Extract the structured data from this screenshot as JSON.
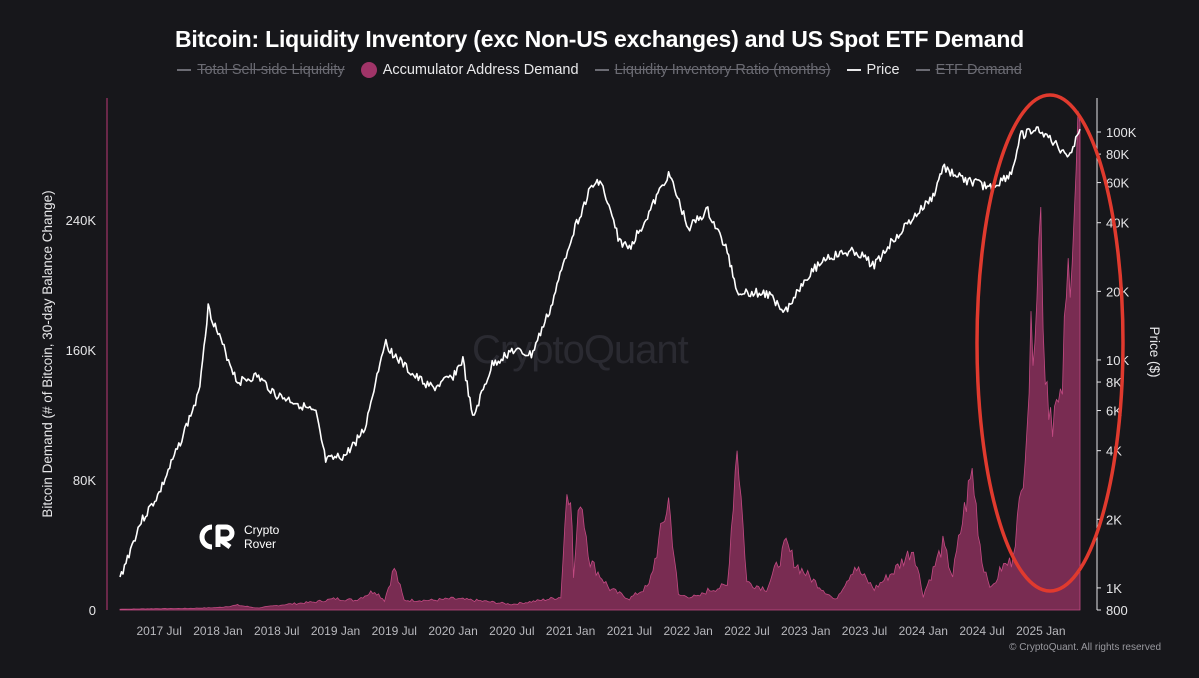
{
  "chart_data": {
    "type": "area",
    "title": "Bitcoin: Liquidity Inventory (exc Non-US exchanges) and US Spot ETF Demand",
    "legend": {
      "placement": "top-center",
      "items": [
        {
          "label": "Total Sell-side Liquidity",
          "active": false,
          "marker": "line"
        },
        {
          "label": "Accumulator Address Demand",
          "active": true,
          "marker": "dot"
        },
        {
          "label": "Liquidity Inventory Ratio (months)",
          "active": false,
          "marker": "line"
        },
        {
          "label": "Price",
          "active": true,
          "marker": "line"
        },
        {
          "label": "ETF Demand",
          "active": false,
          "marker": "line"
        }
      ]
    },
    "ylabel_left": "Bitcoin Demand (# of Bitcoin, 30-day Balance Change)",
    "ylabel_right": "Price ($)",
    "y_left_ticks": [
      "0",
      "80K",
      "160K",
      "240K"
    ],
    "y_left_values": [
      0,
      80000,
      160000,
      240000
    ],
    "y_right_ticks": [
      "800",
      "1K",
      "2K",
      "4K",
      "6K",
      "8K",
      "10K",
      "20K",
      "40K",
      "60K",
      "80K",
      "100K"
    ],
    "y_right_values": [
      800,
      1000,
      2000,
      4000,
      6000,
      8000,
      10000,
      20000,
      40000,
      60000,
      80000,
      100000
    ],
    "y_right_scale": "log",
    "x_ticks": [
      "2017 Jul",
      "2018 Jan",
      "2018 Jul",
      "2019 Jan",
      "2019 Jul",
      "2020 Jan",
      "2020 Jul",
      "2021 Jan",
      "2021 Jul",
      "2022 Jan",
      "2022 Jul",
      "2023 Jan",
      "2023 Jul",
      "2024 Jan",
      "2024 Jul",
      "2025 Jan"
    ],
    "x_range": [
      "2017-03",
      "2025-05"
    ],
    "grid": false,
    "series": [
      {
        "name": "Accumulator Address Demand",
        "axis": "left",
        "color": "#a03468",
        "points": [
          [
            "2017-03",
            500
          ],
          [
            "2017-07",
            800
          ],
          [
            "2017-10",
            1000
          ],
          [
            "2018-01",
            1500
          ],
          [
            "2018-03",
            3000
          ],
          [
            "2018-05",
            1200
          ],
          [
            "2018-08",
            3500
          ],
          [
            "2018-11",
            5000
          ],
          [
            "2019-01",
            7000
          ],
          [
            "2019-03",
            6000
          ],
          [
            "2019-05",
            12000
          ],
          [
            "2019-06",
            6000
          ],
          [
            "2019-07",
            26000
          ],
          [
            "2019-08",
            6000
          ],
          [
            "2019-11",
            6000
          ],
          [
            "2020-01",
            7000
          ],
          [
            "2020-04",
            5500
          ],
          [
            "2020-07",
            3500
          ],
          [
            "2020-10",
            6000
          ],
          [
            "2020-12",
            8000
          ],
          [
            "2020-12-20",
            75000
          ],
          [
            "2021-01",
            76000
          ],
          [
            "2021-01-10",
            20000
          ],
          [
            "2021-02",
            72000
          ],
          [
            "2021-03",
            30000
          ],
          [
            "2021-05",
            13000
          ],
          [
            "2021-07",
            7000
          ],
          [
            "2021-09",
            15000
          ],
          [
            "2021-11",
            68000
          ],
          [
            "2021-12",
            9000
          ],
          [
            "2022-02",
            8000
          ],
          [
            "2022-03",
            12000
          ],
          [
            "2022-05",
            15000
          ],
          [
            "2022-06",
            104000
          ],
          [
            "2022-07",
            17000
          ],
          [
            "2022-09",
            13000
          ],
          [
            "2022-11",
            40000
          ],
          [
            "2022-12",
            28000
          ],
          [
            "2023-02",
            17000
          ],
          [
            "2023-04",
            6000
          ],
          [
            "2023-06",
            27000
          ],
          [
            "2023-08",
            13000
          ],
          [
            "2023-10",
            24000
          ],
          [
            "2023-12",
            38000
          ],
          [
            "2024-01",
            9000
          ],
          [
            "2024-03",
            40000
          ],
          [
            "2024-04",
            21000
          ],
          [
            "2024-05",
            55000
          ],
          [
            "2024-06",
            85000
          ],
          [
            "2024-07",
            30000
          ],
          [
            "2024-08",
            13000
          ],
          [
            "2024-09",
            26000
          ],
          [
            "2024-10",
            30000
          ],
          [
            "2024-11",
            70000
          ],
          [
            "2024-12",
            160000
          ],
          [
            "2025-01",
            240000
          ],
          [
            "2025-01-15",
            150000
          ],
          [
            "2025-02",
            125000
          ],
          [
            "2025-03",
            120000
          ],
          [
            "2025-04",
            225000
          ],
          [
            "2025-05",
            300000
          ]
        ]
      },
      {
        "name": "Price",
        "axis": "right",
        "color": "#ffffff",
        "points": [
          [
            "2017-03",
            1100
          ],
          [
            "2017-05",
            1900
          ],
          [
            "2017-07",
            2600
          ],
          [
            "2017-09",
            4200
          ],
          [
            "2017-11",
            7000
          ],
          [
            "2017-12",
            17000
          ],
          [
            "2018-01",
            13000
          ],
          [
            "2018-03",
            8000
          ],
          [
            "2018-05",
            8500
          ],
          [
            "2018-07",
            7000
          ],
          [
            "2018-09",
            6500
          ],
          [
            "2018-11",
            5800
          ],
          [
            "2018-12",
            3600
          ],
          [
            "2019-02",
            3800
          ],
          [
            "2019-04",
            5000
          ],
          [
            "2019-06",
            12000
          ],
          [
            "2019-07",
            10500
          ],
          [
            "2019-09",
            8500
          ],
          [
            "2019-11",
            7500
          ],
          [
            "2020-01",
            8500
          ],
          [
            "2020-02",
            10000
          ],
          [
            "2020-03",
            5500
          ],
          [
            "2020-05",
            9500
          ],
          [
            "2020-07",
            11000
          ],
          [
            "2020-09",
            10500
          ],
          [
            "2020-11",
            17000
          ],
          [
            "2021-01",
            34000
          ],
          [
            "2021-03",
            56000
          ],
          [
            "2021-04",
            62000
          ],
          [
            "2021-06",
            33000
          ],
          [
            "2021-07",
            31000
          ],
          [
            "2021-09",
            44000
          ],
          [
            "2021-11",
            66000
          ],
          [
            "2022-01",
            38000
          ],
          [
            "2022-03",
            45000
          ],
          [
            "2022-05",
            30000
          ],
          [
            "2022-06",
            20000
          ],
          [
            "2022-09",
            19500
          ],
          [
            "2022-11",
            16500
          ],
          [
            "2023-01",
            23000
          ],
          [
            "2023-03",
            28000
          ],
          [
            "2023-06",
            30000
          ],
          [
            "2023-08",
            26000
          ],
          [
            "2023-10",
            34000
          ],
          [
            "2023-12",
            42000
          ],
          [
            "2024-02",
            52000
          ],
          [
            "2024-03",
            70000
          ],
          [
            "2024-05",
            62000
          ],
          [
            "2024-08",
            57000
          ],
          [
            "2024-10",
            66000
          ],
          [
            "2024-11",
            97000
          ],
          [
            "2024-12",
            100000
          ],
          [
            "2025-01",
            102000
          ],
          [
            "2025-03",
            84000
          ],
          [
            "2025-04",
            80000
          ],
          [
            "2025-05",
            103000
          ]
        ]
      }
    ],
    "annotations": [
      {
        "type": "ellipse",
        "color": "#e03a2e",
        "x_center": "2025-01",
        "label": ""
      }
    ]
  },
  "watermark": "CryptoQuant",
  "logo": {
    "line1": "Crypto",
    "line2": "Rover"
  },
  "copyright": "© CryptoQuant. All rights reserved",
  "colors": {
    "background": "#17171b",
    "demand": "#a03468",
    "price": "#ffffff",
    "annotation": "#e03a2e"
  }
}
